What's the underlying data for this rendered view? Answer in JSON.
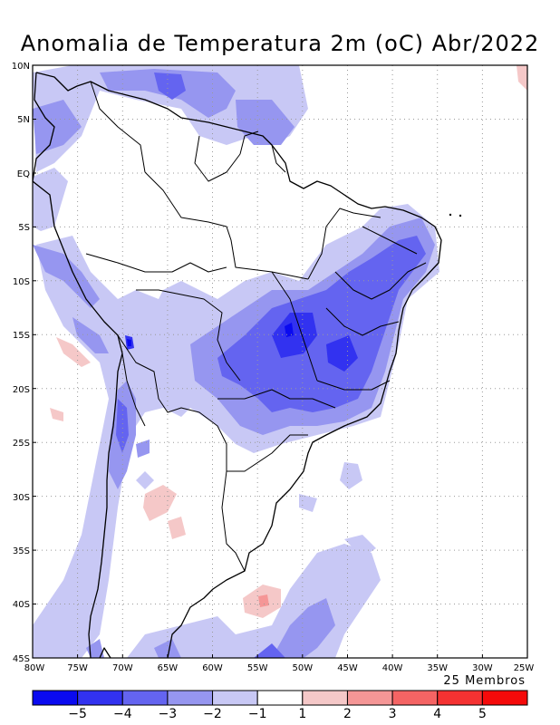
{
  "title": "Anomalia de Temperatura 2m (oC) Abr/2022",
  "ensemble_label": "25 Membros",
  "lat_ticks": [
    {
      "label": "10N",
      "lat": 10
    },
    {
      "label": "5N",
      "lat": 5
    },
    {
      "label": "EQ",
      "lat": 0
    },
    {
      "label": "5S",
      "lat": -5
    },
    {
      "label": "10S",
      "lat": -10
    },
    {
      "label": "15S",
      "lat": -15
    },
    {
      "label": "20S",
      "lat": -20
    },
    {
      "label": "25S",
      "lat": -25
    },
    {
      "label": "30S",
      "lat": -30
    },
    {
      "label": "35S",
      "lat": -35
    },
    {
      "label": "40S",
      "lat": -40
    },
    {
      "label": "45S",
      "lat": -45
    }
  ],
  "lon_ticks": [
    {
      "label": "80W",
      "lon": -80
    },
    {
      "label": "75W",
      "lon": -75
    },
    {
      "label": "70W",
      "lon": -70
    },
    {
      "label": "65W",
      "lon": -65
    },
    {
      "label": "60W",
      "lon": -60
    },
    {
      "label": "55W",
      "lon": -55
    },
    {
      "label": "50W",
      "lon": -50
    },
    {
      "label": "45W",
      "lon": -45
    },
    {
      "label": "40W",
      "lon": -40
    },
    {
      "label": "35W",
      "lon": -35
    },
    {
      "label": "30W",
      "lon": -30
    },
    {
      "label": "25W",
      "lon": -25
    }
  ],
  "colorbar": {
    "colors": [
      "#0a0af0",
      "#3232f0",
      "#6464f0",
      "#9696f0",
      "#c8c8f5",
      "#ffffff",
      "#f5c8c8",
      "#f59696",
      "#f56464",
      "#f53232",
      "#f50a0a"
    ],
    "labels": [
      "−5",
      "−4",
      "−3",
      "−2",
      "−1",
      "1",
      "2",
      "3",
      "4",
      "5"
    ]
  },
  "legend_colors": {
    "lt_-1": "#c8c8f5",
    "lt_-2": "#9696f0",
    "lt_-3": "#6464f0",
    "lt_-4": "#3232f0",
    "lt_-5": "#0a0af0",
    "gt_1": "#f5c8c8",
    "gt_2": "#f59696"
  }
}
